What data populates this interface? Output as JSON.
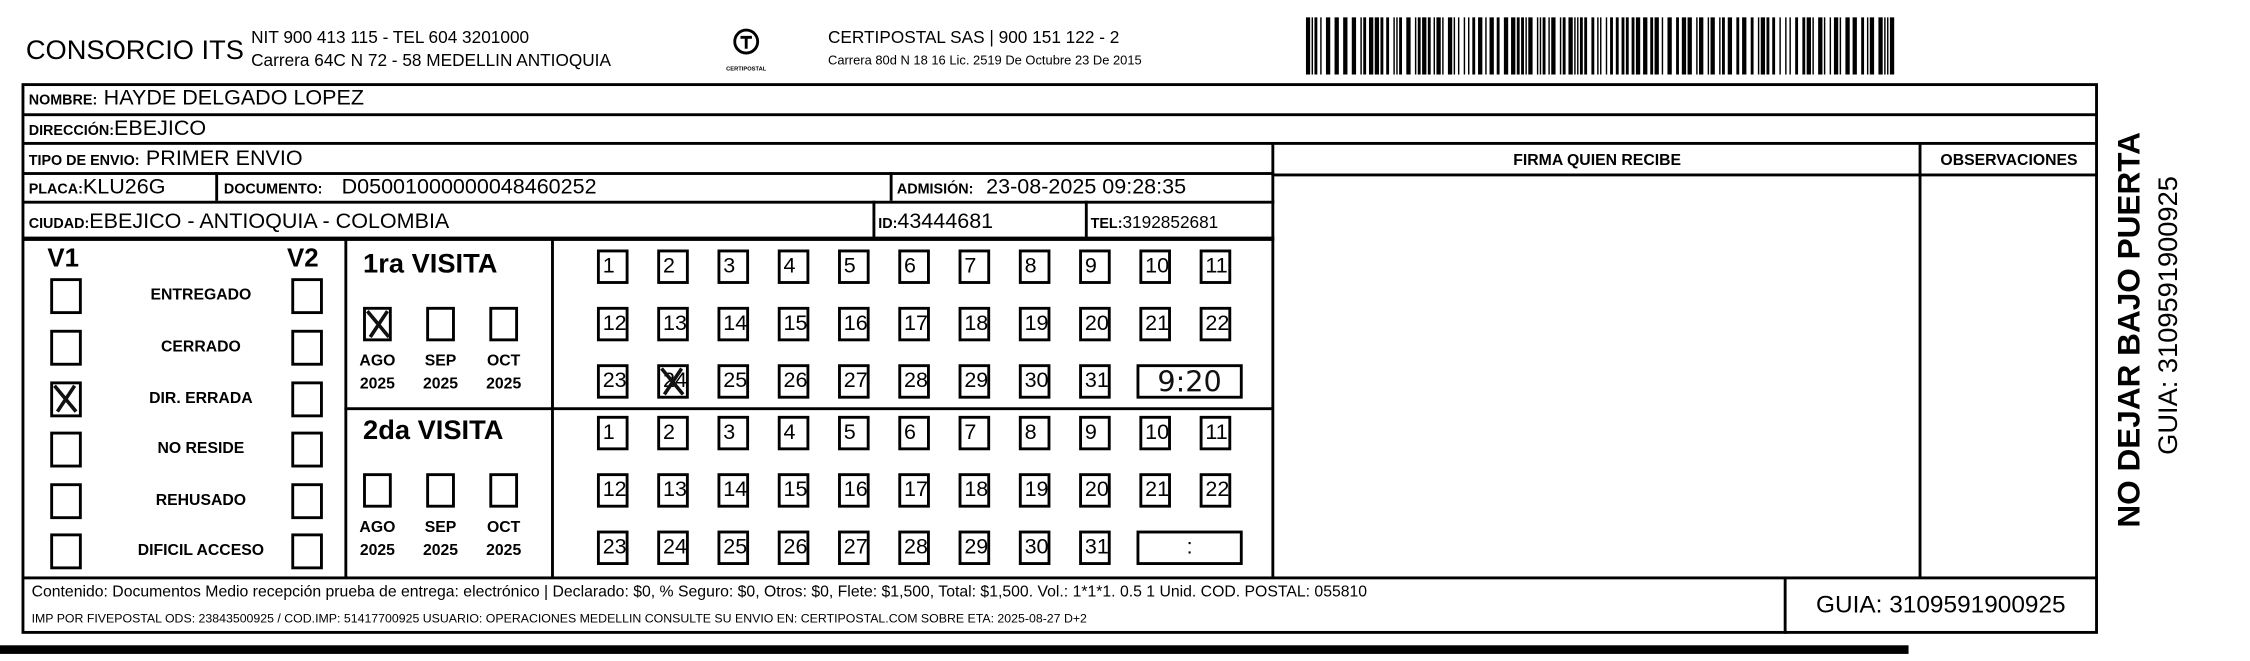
{
  "header": {
    "company": "CONSORCIO ITS",
    "company_line1": "NIT 900 413 115 - TEL 604 3201000",
    "company_line2": "Carrera 64C N 72 - 58 MEDELLIN ANTIOQUIA",
    "logo_text": "CERTIPOSTAL",
    "carrier_line1": "CERTIPOSTAL SAS | 900 151 122 - 2",
    "carrier_line2": "Carrera 80d N 18 16  Lic. 2519 De Octubre 23 De 2015"
  },
  "fields": {
    "nombre_label": "NOMBRE:",
    "nombre": "HAYDE DELGADO LOPEZ",
    "direccion_label": "DIRECCIÓN:",
    "direccion": "EBEJICO",
    "tipo_label": "TIPO DE ENVIO:",
    "tipo": "PRIMER ENVIO",
    "placa_label": "PLACA:",
    "placa": "KLU26G",
    "documento_label": "DOCUMENTO:",
    "documento": "D05001000000048460252",
    "admision_label": "ADMISIÓN:",
    "admision": "23-08-2025 09:28:35",
    "ciudad_label": "CIUDAD:",
    "ciudad": "EBEJICO - ANTIOQUIA - COLOMBIA",
    "id_label": "ID:",
    "id": "43444681",
    "tel_label": "TEL:",
    "tel": "3192852681"
  },
  "signature": {
    "firma_header": "FIRMA QUIEN RECIBE",
    "observaciones_header": "OBSERVACIONES"
  },
  "status": {
    "v1_label": "V1",
    "v2_label": "V2",
    "items": [
      {
        "label": "ENTREGADO",
        "v1": false,
        "v2": false
      },
      {
        "label": "CERRADO",
        "v1": false,
        "v2": false
      },
      {
        "label": "DIR. ERRADA",
        "v1": true,
        "v2": false
      },
      {
        "label": "NO RESIDE",
        "v1": false,
        "v2": false
      },
      {
        "label": "REHUSADO",
        "v1": false,
        "v2": false
      },
      {
        "label": "DIFICIL ACCESO",
        "v1": false,
        "v2": false
      }
    ]
  },
  "visits": [
    {
      "title": "1ra VISITA",
      "months": [
        {
          "m": "AGO",
          "y": "2025",
          "checked": true
        },
        {
          "m": "SEP",
          "y": "2025",
          "checked": false
        },
        {
          "m": "OCT",
          "y": "2025",
          "checked": false
        }
      ],
      "marked_day": 24,
      "time": "9:20"
    },
    {
      "title": "2da VISITA",
      "months": [
        {
          "m": "AGO",
          "y": "2025",
          "checked": false
        },
        {
          "m": "SEP",
          "y": "2025",
          "checked": false
        },
        {
          "m": "OCT",
          "y": "2025",
          "checked": false
        }
      ],
      "marked_day": null,
      "time": ":"
    }
  ],
  "footer": {
    "line1": "Contenido: Documentos Medio recepción prueba de entrega: electrónico | Declarado: $0, % Seguro: $0, Otros: $0, Flete: $1,500, Total: $1,500. Vol.: 1*1*1. 0.5  1 Unid. COD. POSTAL: 055810",
    "line2": "IMP POR FIVEPOSTAL ODS: 23843500925 / COD.IMP: 51417700925 USUARIO: OPERACIONES MEDELLIN CONSULTE SU ENVIO EN: CERTIPOSTAL.COM SOBRE ETA: 2025-08-27 D+2",
    "guia": "GUIA: 3109591900925"
  },
  "side": {
    "notice": "NO DEJAR BAJO PUERTA",
    "guia": "GUIA: 3109591900925"
  }
}
